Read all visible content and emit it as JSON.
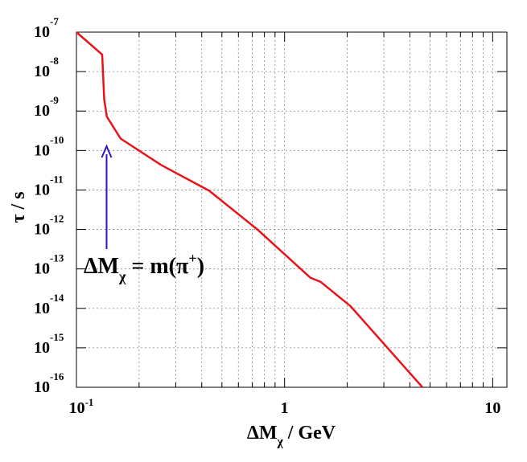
{
  "chart_data": {
    "type": "line",
    "x_label": [
      {
        "text": "ΔM"
      },
      {
        "text": "χ",
        "sub": true
      },
      {
        "text": " / GeV"
      }
    ],
    "y_label": "τ / s",
    "log_x": true,
    "log_y": true,
    "grid": true,
    "xlim": [
      0.1,
      11.7
    ],
    "ylim": [
      1e-16,
      1e-07
    ],
    "xticks": [
      {
        "value": 0.1,
        "label": "10",
        "superscript": "-1"
      },
      1,
      10
    ],
    "minor_xticks": [
      0.2,
      0.3,
      0.4,
      0.5,
      0.6,
      0.7,
      0.8,
      0.9,
      2,
      3,
      4,
      5,
      6,
      7,
      8,
      9
    ],
    "yticks": [
      {
        "value": 1e-16,
        "label": "10",
        "superscript": "-16"
      },
      {
        "value": 1e-15,
        "label": "10",
        "superscript": "-15"
      },
      {
        "value": 1e-14,
        "label": "10",
        "superscript": "-14"
      },
      {
        "value": 1e-13,
        "label": "10",
        "superscript": "-13"
      },
      {
        "value": 1e-12,
        "label": "10",
        "superscript": "-12"
      },
      {
        "value": 1e-11,
        "label": "10",
        "superscript": "-11"
      },
      {
        "value": 1e-10,
        "label": "10",
        "superscript": "-10"
      },
      {
        "value": 1e-09,
        "label": "10",
        "superscript": "-9"
      },
      {
        "value": 1e-08,
        "label": "10",
        "superscript": "-8"
      },
      {
        "value": 1e-07,
        "label": "10",
        "superscript": "-7"
      }
    ],
    "series": [
      {
        "color": "#e8141a",
        "x": [
          0.1,
          0.133,
          0.136,
          0.14,
          0.163,
          0.255,
          0.435,
          0.74,
          1.33,
          1.49,
          2.07,
          4.6
        ],
        "values": [
          1e-07,
          2.7e-08,
          2e-09,
          7.2e-10,
          2e-10,
          4.3e-11,
          9.5e-12,
          1e-12,
          6e-14,
          4.7e-14,
          1.15e-14,
          1e-16
        ]
      }
    ],
    "annotation": {
      "x": 0.1396,
      "color": "#3311cc",
      "text": [
        {
          "text": "ΔM"
        },
        {
          "text": "χ",
          "sub": true
        },
        {
          "text": " = m(π"
        },
        {
          "text": "+",
          "sup": true
        },
        {
          "text": ")"
        }
      ]
    }
  }
}
